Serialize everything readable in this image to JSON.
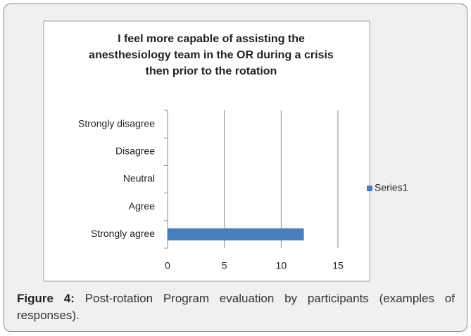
{
  "caption": {
    "label": "Figure 4:",
    "text": "Post-rotation Program evaluation by participants (examples of responses)."
  },
  "chart_data": {
    "type": "bar",
    "orientation": "horizontal",
    "title": "I feel more capable of assisting the anesthesiology team in the OR during a crisis then prior to the rotation",
    "categories": [
      "Strongly disagree",
      "Disagree",
      "Neutral",
      "Agree",
      "Strongly agree"
    ],
    "series": [
      {
        "name": "Series1",
        "color": "#4a7ebb",
        "values": [
          0,
          0,
          0,
          0,
          12
        ]
      }
    ],
    "xlim": [
      0,
      15
    ],
    "xticks": [
      0,
      5,
      10,
      15
    ],
    "grid": true,
    "legend": "right"
  }
}
